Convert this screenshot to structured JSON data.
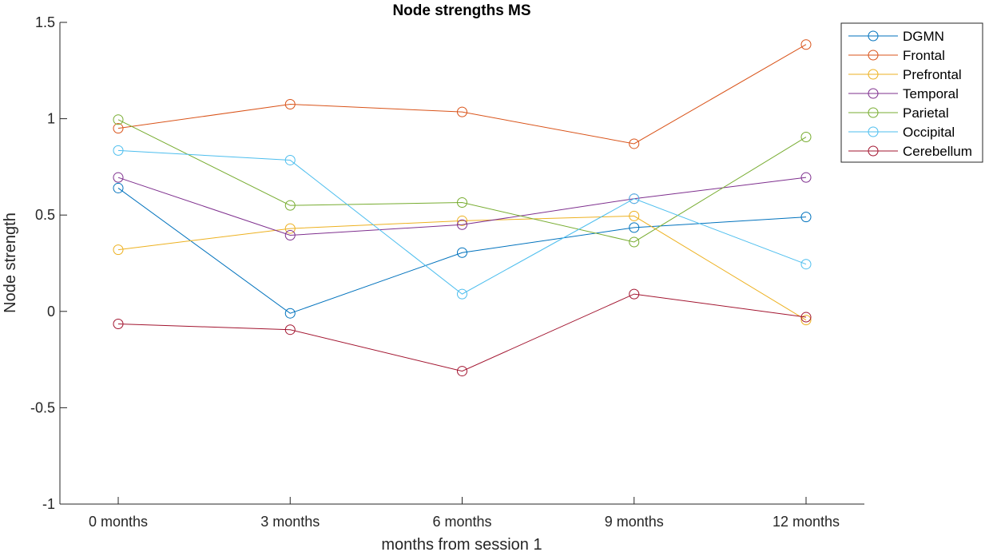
{
  "chart_data": {
    "type": "line",
    "title": "Node strengths MS",
    "xlabel": "months from session 1",
    "ylabel": "Node strength",
    "categories": [
      "0 months",
      "3 months",
      "6 months",
      "9 months",
      "12 months"
    ],
    "ylim": [
      -1,
      1.5
    ],
    "yticks": [
      -1,
      -0.5,
      0,
      0.5,
      1,
      1.5
    ],
    "ytick_labels": [
      "-1",
      "-0.5",
      "0",
      "0.5",
      "1",
      "1.5"
    ],
    "grid": false,
    "legend_position": "top-right",
    "marker": "open-circle",
    "series": [
      {
        "name": "DGMN",
        "color": "#0072BD",
        "values": [
          0.64,
          -0.01,
          0.305,
          0.435,
          0.49
        ]
      },
      {
        "name": "Frontal",
        "color": "#D95319",
        "values": [
          0.95,
          1.075,
          1.035,
          0.87,
          1.385
        ]
      },
      {
        "name": "Prefrontal",
        "color": "#EDB120",
        "values": [
          0.32,
          0.43,
          0.47,
          0.495,
          -0.045
        ]
      },
      {
        "name": "Temporal",
        "color": "#7E2F8E",
        "values": [
          0.695,
          0.395,
          0.45,
          0.585,
          0.695
        ]
      },
      {
        "name": "Parietal",
        "color": "#77AC30",
        "values": [
          0.995,
          0.55,
          0.565,
          0.36,
          0.905
        ]
      },
      {
        "name": "Occipital",
        "color": "#4DBEEE",
        "values": [
          0.835,
          0.785,
          0.09,
          0.585,
          0.245
        ]
      },
      {
        "name": "Cerebellum",
        "color": "#A2142F",
        "values": [
          -0.065,
          -0.095,
          -0.31,
          0.09,
          -0.03
        ]
      }
    ]
  }
}
